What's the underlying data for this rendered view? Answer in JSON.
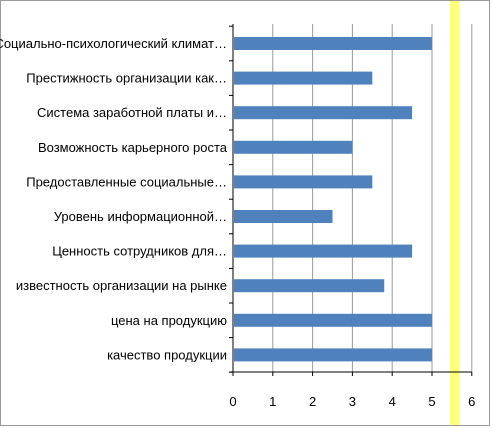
{
  "chart_data": {
    "type": "bar",
    "orientation": "horizontal",
    "categories": [
      "Социально-психологический климат…",
      "Престижность организации как…",
      "Система заработной платы и…",
      "Возможность карьерного роста",
      "Предоставленные социальные…",
      "Уровень информационной…",
      "Ценность сотрудников для…",
      "известность организации на рынке",
      "цена на продукцию",
      "качество продукции"
    ],
    "values": [
      5,
      3.5,
      4.5,
      3,
      3.5,
      2.5,
      4.5,
      3.8,
      5,
      5
    ],
    "xlim": [
      0,
      6
    ],
    "x_ticks": [
      "0",
      "1",
      "2",
      "3",
      "4",
      "5",
      "6"
    ],
    "grid": "vertical",
    "bar_color": "#4f81bd",
    "title": "",
    "xlabel": "",
    "ylabel": ""
  },
  "colors": {
    "bar": "#4f81bd",
    "gridline": "#9a9a9a",
    "highlight_band": "#ffff66",
    "frame": "#9a9a9a"
  }
}
